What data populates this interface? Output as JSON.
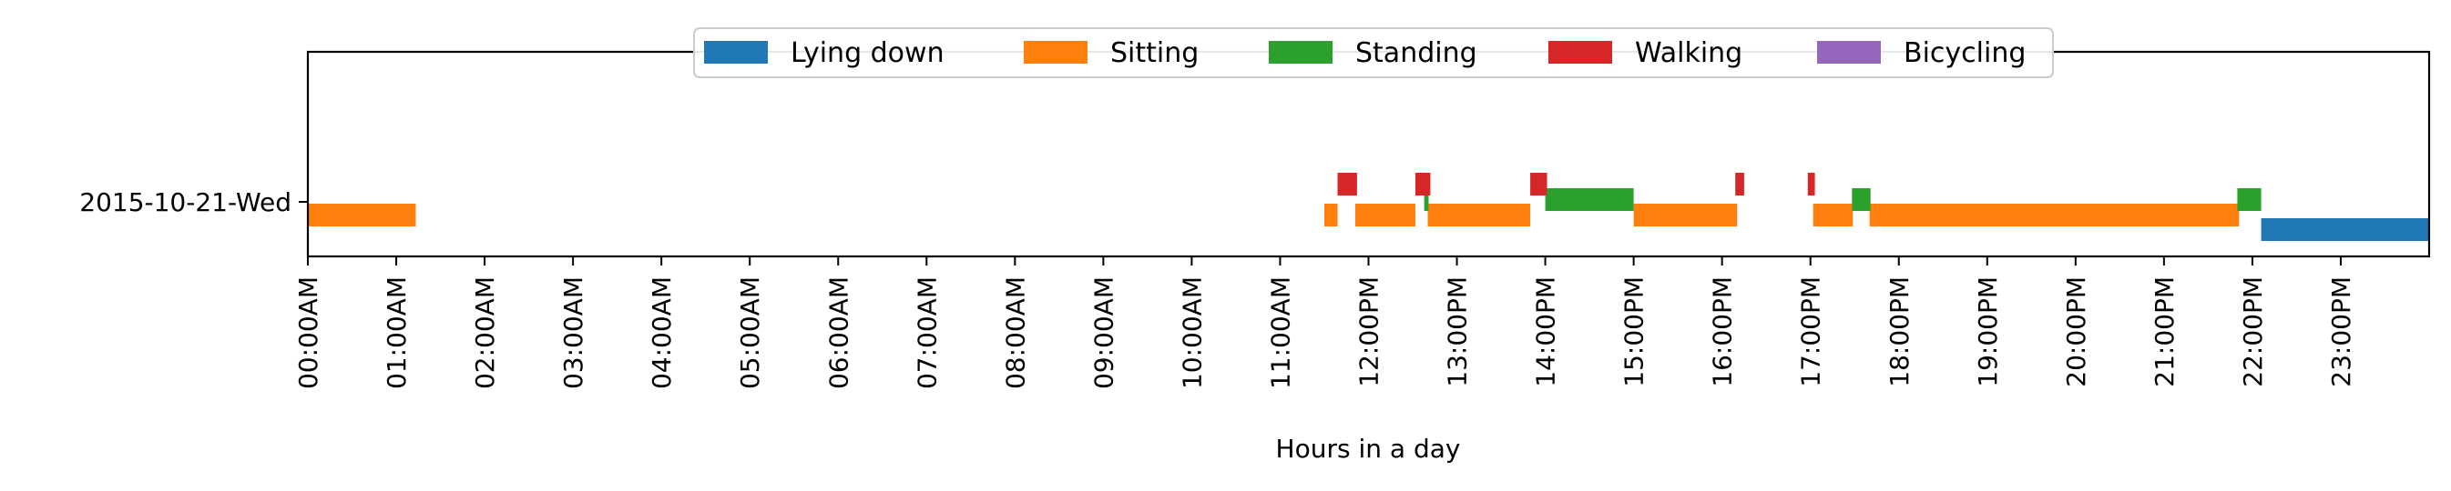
{
  "chart_data": {
    "type": "bar",
    "orientation": "horizontal-timeline",
    "title": "",
    "xlabel": "Hours in a day",
    "ylabel": "",
    "xlim": [
      0,
      24
    ],
    "grid": false,
    "legend_position": "top-center",
    "categories": [
      "2015-10-21-Wed"
    ],
    "x_tick_labels": [
      "00:00AM",
      "01:00AM",
      "02:00AM",
      "03:00AM",
      "04:00AM",
      "05:00AM",
      "06:00AM",
      "07:00AM",
      "08:00AM",
      "09:00AM",
      "10:00AM",
      "11:00AM",
      "12:00PM",
      "13:00PM",
      "14:00PM",
      "15:00PM",
      "16:00PM",
      "17:00PM",
      "18:00PM",
      "19:00PM",
      "20:00PM",
      "21:00PM",
      "22:00PM",
      "23:00PM"
    ],
    "series": [
      {
        "name": "Lying down",
        "color": "#1f77b4",
        "intervals": [
          [
            22.1,
            24.0
          ]
        ]
      },
      {
        "name": "Sitting",
        "color": "#ff7f0e",
        "intervals": [
          [
            0.0,
            1.22
          ],
          [
            11.5,
            11.65
          ],
          [
            11.85,
            12.53
          ],
          [
            12.67,
            13.83
          ],
          [
            15.0,
            16.17
          ],
          [
            17.03,
            17.48
          ],
          [
            17.67,
            21.85
          ]
        ]
      },
      {
        "name": "Standing",
        "color": "#2ca02c",
        "intervals": [
          [
            12.63,
            12.68
          ],
          [
            14.0,
            15.0
          ],
          [
            17.47,
            17.68
          ],
          [
            21.83,
            22.1
          ]
        ]
      },
      {
        "name": "Walking",
        "color": "#d62728",
        "intervals": [
          [
            11.65,
            11.87
          ],
          [
            12.53,
            12.7
          ],
          [
            13.83,
            14.02
          ],
          [
            16.15,
            16.25
          ],
          [
            16.97,
            17.05
          ]
        ]
      },
      {
        "name": "Bicycling",
        "color": "#9467bd",
        "intervals": []
      }
    ]
  }
}
